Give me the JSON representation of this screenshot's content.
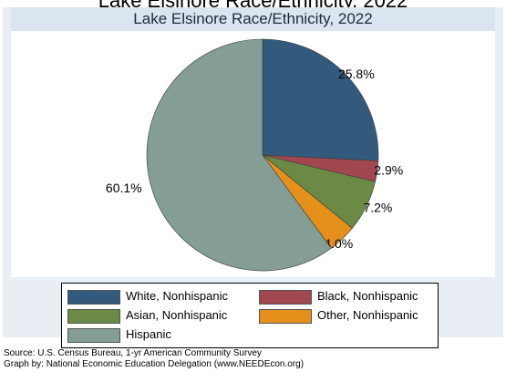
{
  "header_clip": "Lake Elsinore Race/Ethnicity, 2022",
  "chart_data": {
    "type": "pie",
    "title": "Lake Elsinore Race/Ethnicity, 2022",
    "slices": [
      {
        "name": "White, Nonhispanic",
        "value": 25.8,
        "label": "25.8%",
        "color": "#335a7c"
      },
      {
        "name": "Black, Nonhispanic",
        "value": 2.9,
        "label": "2.9%",
        "color": "#a0474f"
      },
      {
        "name": "Asian, Nonhispanic",
        "value": 7.2,
        "label": "7.2%",
        "color": "#6b8a45"
      },
      {
        "name": "Other, Nonhispanic",
        "value": 4.0,
        "label": "4.0%",
        "color": "#e6901c"
      },
      {
        "name": "Hispanic",
        "value": 60.1,
        "label": "60.1%",
        "color": "#849e96"
      }
    ],
    "legend_placement": "bottom"
  },
  "footer": {
    "source": "Source:  U.S. Census Bureau, 1-yr American Community Survey",
    "credit": "Graph by: National Economic Education Delegation (www.NEEDEcon.org)"
  }
}
